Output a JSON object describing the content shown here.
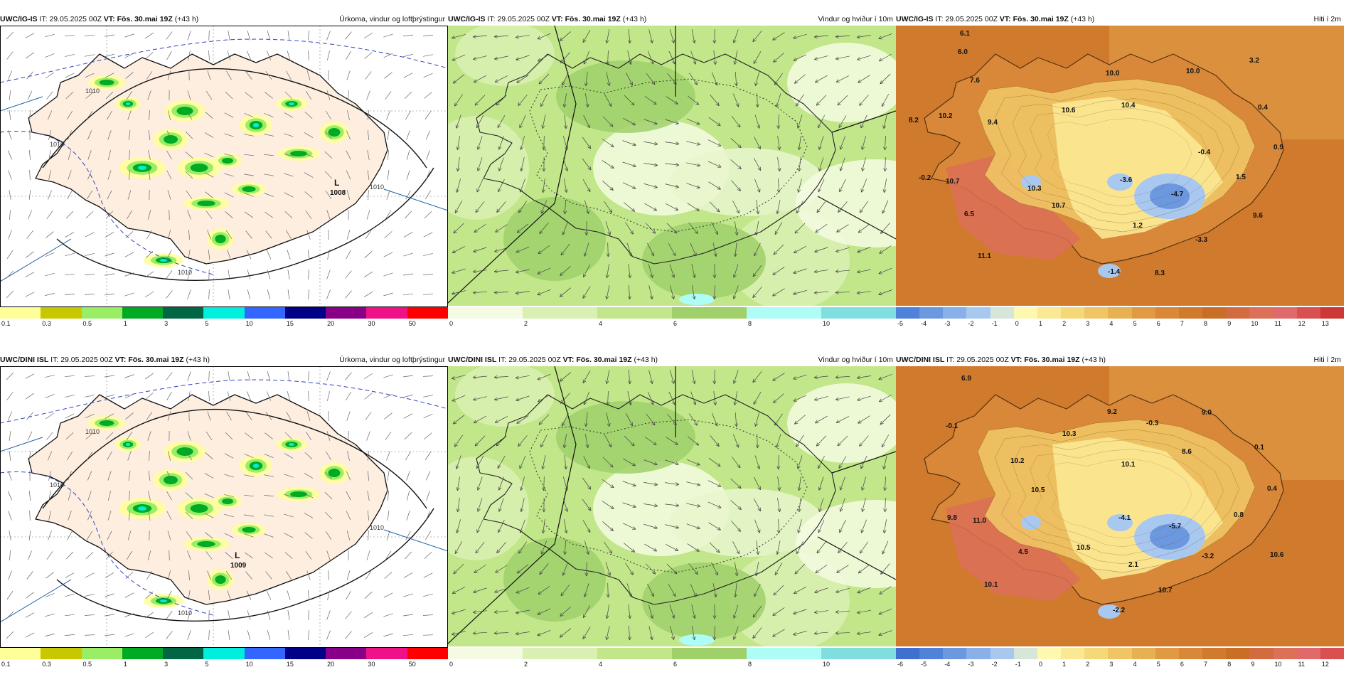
{
  "panels": [
    {
      "id": "p1",
      "model": "UWC/IG-IS",
      "it_label": "IT:",
      "it_time": "29.05.2025 00Z",
      "vt_label": "VT:",
      "vt_time": "Fös. 30.mai 19Z",
      "lead": "(+43 h)",
      "title": "Úrkoma, vindur og loftþrýstingur",
      "type": "precip",
      "pressure_label": "L",
      "pressure_value": "1008",
      "isobar_labels": [
        "1010",
        "1010",
        "1010",
        "1010"
      ],
      "ticks": [
        "0.1",
        "0.3",
        "0.5",
        "1",
        "3",
        "5",
        "10",
        "15",
        "20",
        "30",
        "50"
      ],
      "colors": [
        "#ffff99",
        "#c8c800",
        "#99ee66",
        "#00aa22",
        "#006644",
        "#00eedd",
        "#3366ff",
        "#000088",
        "#880088",
        "#ee1188",
        "#ff0000"
      ]
    },
    {
      "id": "p2",
      "model": "UWC/IG-IS",
      "it_label": "IT:",
      "it_time": "29.05.2025 00Z",
      "vt_label": "VT:",
      "vt_time": "Fös. 30.mai 19Z",
      "lead": "(+43 h)",
      "title": "Vindur og hviður í 10m",
      "type": "wind",
      "ticks": [
        "0",
        "2",
        "4",
        "6",
        "8",
        "10"
      ],
      "colors": [
        "#f4fbe2",
        "#daf0b2",
        "#c2e68a",
        "#9fd06a",
        "#aefcf6",
        "#80dede"
      ]
    },
    {
      "id": "p3",
      "model": "UWC/IG-IS",
      "it_label": "IT:",
      "it_time": "29.05.2025 00Z",
      "vt_label": "VT:",
      "vt_time": "Fös. 30.mai 19Z",
      "lead": "(+43 h)",
      "title": "Hiti í 2m",
      "type": "temp",
      "ticks": [
        "-5",
        "-4",
        "-3",
        "-2",
        "-1",
        "0",
        "1",
        "2",
        "3",
        "4",
        "5",
        "6",
        "7",
        "8",
        "9",
        "10",
        "11",
        "12",
        "13"
      ],
      "colors": [
        "#4f82d8",
        "#6c98e0",
        "#89b0e8",
        "#a9c8f0",
        "#d6e6d8",
        "#fff8b0",
        "#fbe894",
        "#f5d879",
        "#efc565",
        "#e7b053",
        "#e09a44",
        "#d88838",
        "#d07a2e",
        "#c86e26",
        "#d26c40",
        "#dc7058",
        "#e06a6a",
        "#d85050",
        "#cc3838"
      ],
      "temps": [
        {
          "v": "6.1",
          "x": 90,
          "y": 14
        },
        {
          "v": "6.0",
          "x": 87,
          "y": 40
        },
        {
          "v": "7.6",
          "x": 104,
          "y": 80
        },
        {
          "v": "10.0",
          "x": 295,
          "y": 70
        },
        {
          "v": "10.0",
          "x": 408,
          "y": 67
        },
        {
          "v": "3.2",
          "x": 497,
          "y": 52
        },
        {
          "v": "10.2",
          "x": 60,
          "y": 130
        },
        {
          "v": "8.2",
          "x": 18,
          "y": 136
        },
        {
          "v": "9.4",
          "x": 129,
          "y": 139
        },
        {
          "v": "10.6",
          "x": 233,
          "y": 122
        },
        {
          "v": "10.4",
          "x": 317,
          "y": 115
        },
        {
          "v": "0.4",
          "x": 509,
          "y": 118
        },
        {
          "v": "-0.4",
          "x": 425,
          "y": 181
        },
        {
          "v": "0.9",
          "x": 531,
          "y": 174
        },
        {
          "v": "-0.2",
          "x": 32,
          "y": 217
        },
        {
          "v": "10.7",
          "x": 70,
          "y": 222
        },
        {
          "v": "10.3",
          "x": 185,
          "y": 232
        },
        {
          "v": "-3.6",
          "x": 315,
          "y": 220
        },
        {
          "v": "1.5",
          "x": 478,
          "y": 216
        },
        {
          "v": "-4.7",
          "x": 387,
          "y": 240
        },
        {
          "v": "10.7",
          "x": 219,
          "y": 256
        },
        {
          "v": "6.5",
          "x": 96,
          "y": 268
        },
        {
          "v": "9.6",
          "x": 502,
          "y": 270
        },
        {
          "v": "1.2",
          "x": 333,
          "y": 284
        },
        {
          "v": "-3.3",
          "x": 421,
          "y": 304
        },
        {
          "v": "11.1",
          "x": 115,
          "y": 327
        },
        {
          "v": "-1.4",
          "x": 298,
          "y": 349
        },
        {
          "v": "8.3",
          "x": 364,
          "y": 351
        }
      ]
    },
    {
      "id": "p4",
      "model": "UWC/DINI ISL",
      "it_label": "IT:",
      "it_time": "29.05.2025 00Z",
      "vt_label": "VT:",
      "vt_time": "Fös. 30.mai 19Z",
      "lead": "(+43 h)",
      "title": "Úrkoma, vindur og loftþrýstingur",
      "type": "precip",
      "pressure_label": "L",
      "pressure_value": "1009",
      "isobar_labels": [
        "1010",
        "1010",
        "1010",
        "1010"
      ],
      "ticks": [
        "0.1",
        "0.3",
        "0.5",
        "1",
        "3",
        "5",
        "10",
        "15",
        "20",
        "30",
        "50"
      ],
      "colors": [
        "#ffff99",
        "#c8c800",
        "#99ee66",
        "#00aa22",
        "#006644",
        "#00eedd",
        "#3366ff",
        "#000088",
        "#880088",
        "#ee1188",
        "#ff0000"
      ]
    },
    {
      "id": "p5",
      "model": "UWC/DINI ISL",
      "it_label": "IT:",
      "it_time": "29.05.2025 00Z",
      "vt_label": "VT:",
      "vt_time": "Fös. 30.mai 19Z",
      "lead": "(+43 h)",
      "title": "Vindur og hviður í 10m",
      "type": "wind",
      "ticks": [
        "0",
        "2",
        "4",
        "6",
        "8",
        "10"
      ],
      "colors": [
        "#f4fbe2",
        "#daf0b2",
        "#c2e68a",
        "#9fd06a",
        "#aefcf6",
        "#80dede"
      ]
    },
    {
      "id": "p6",
      "model": "UWC/DINI ISL",
      "it_label": "IT:",
      "it_time": "29.05.2025 00Z",
      "vt_label": "VT:",
      "vt_time": "Fös. 30.mai 19Z",
      "lead": "(+43 h)",
      "title": "Hiti í 2m",
      "type": "temp",
      "ticks": [
        "-6",
        "-5",
        "-4",
        "-3",
        "-2",
        "-1",
        "0",
        "1",
        "2",
        "3",
        "4",
        "5",
        "6",
        "7",
        "8",
        "9",
        "10",
        "11",
        "12"
      ],
      "colors": [
        "#3f6fcf",
        "#4f82d8",
        "#6c98e0",
        "#89b0e8",
        "#a9c8f0",
        "#d6e6d8",
        "#fff8b0",
        "#fbe894",
        "#f5d879",
        "#efc565",
        "#e7b053",
        "#e09a44",
        "#d88838",
        "#d07a2e",
        "#c86e26",
        "#d26c40",
        "#dc7058",
        "#e06a6a",
        "#d85050"
      ],
      "temps": [
        {
          "v": "6.9",
          "x": 92,
          "y": 20
        },
        {
          "v": "9.2",
          "x": 297,
          "y": 67
        },
        {
          "v": "-0.3",
          "x": 352,
          "y": 83
        },
        {
          "v": "9.0",
          "x": 430,
          "y": 68
        },
        {
          "v": "-0.1",
          "x": 70,
          "y": 87
        },
        {
          "v": "10.3",
          "x": 234,
          "y": 98
        },
        {
          "v": "0.1",
          "x": 504,
          "y": 117
        },
        {
          "v": "8.6",
          "x": 402,
          "y": 123
        },
        {
          "v": "10.2",
          "x": 161,
          "y": 136
        },
        {
          "v": "10.1",
          "x": 317,
          "y": 141
        },
        {
          "v": "10.5",
          "x": 190,
          "y": 177
        },
        {
          "v": "0.4",
          "x": 522,
          "y": 175
        },
        {
          "v": "9.8",
          "x": 72,
          "y": 216
        },
        {
          "v": "11.0",
          "x": 108,
          "y": 220
        },
        {
          "v": "-4.1",
          "x": 313,
          "y": 216
        },
        {
          "v": "0.8",
          "x": 475,
          "y": 212
        },
        {
          "v": "-5.7",
          "x": 384,
          "y": 228
        },
        {
          "v": "4.5",
          "x": 172,
          "y": 264
        },
        {
          "v": "10.5",
          "x": 254,
          "y": 258
        },
        {
          "v": "-3.2",
          "x": 430,
          "y": 270
        },
        {
          "v": "10.6",
          "x": 526,
          "y": 268
        },
        {
          "v": "2.1",
          "x": 327,
          "y": 282
        },
        {
          "v": "10.1",
          "x": 124,
          "y": 310
        },
        {
          "v": "10.7",
          "x": 369,
          "y": 318
        },
        {
          "v": "-2.2",
          "x": 305,
          "y": 346
        }
      ]
    }
  ]
}
